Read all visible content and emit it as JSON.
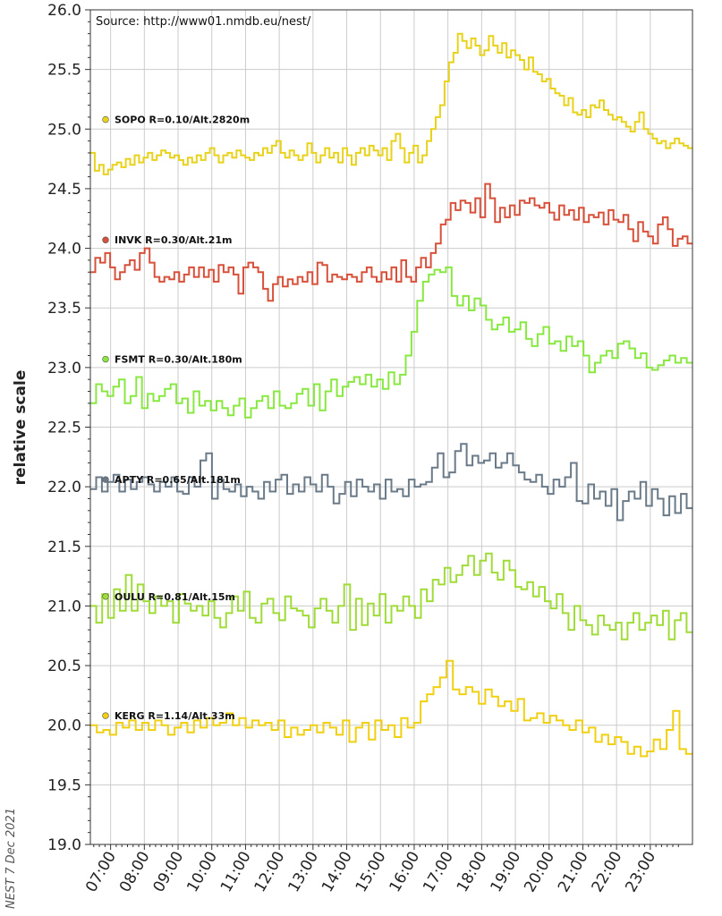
{
  "chart_data": {
    "type": "line",
    "source_note": "Source: http://www01.nmdb.eu/nest/",
    "credit": "NEST  7 Dec 2021",
    "ylabel": "relative scale",
    "ylim": [
      19.0,
      26.0
    ],
    "yticks": [
      "26.0",
      "25.5",
      "25.0",
      "24.5",
      "24.0",
      "23.5",
      "23.0",
      "22.5",
      "22.0",
      "21.5",
      "21.0",
      "20.5",
      "20.0",
      "19.5",
      "19.0"
    ],
    "xlim": [
      6.4,
      24.25
    ],
    "xticks": [
      "07:00",
      "08:00",
      "09:00",
      "10:00",
      "11:00",
      "12:00",
      "13:00",
      "14:00",
      "15:00",
      "16:00",
      "17:00",
      "18:00",
      "19:00",
      "20:00",
      "21:00",
      "22:00",
      "23:00"
    ],
    "grid": true,
    "step": 0.1667,
    "series": [
      {
        "name": "SOPO R=0.10/Alt.2820m",
        "color": "#e8d21a",
        "values": [
          24.8,
          24.65,
          24.7,
          24.62,
          24.66,
          24.7,
          24.72,
          24.68,
          24.75,
          24.7,
          24.78,
          24.72,
          24.76,
          24.8,
          24.74,
          24.78,
          24.82,
          24.8,
          24.76,
          24.78,
          24.74,
          24.7,
          24.76,
          24.72,
          24.78,
          24.74,
          24.8,
          24.84,
          24.78,
          24.72,
          24.78,
          24.8,
          24.76,
          24.82,
          24.78,
          24.76,
          24.74,
          24.8,
          24.78,
          24.84,
          24.8,
          24.86,
          24.9,
          24.8,
          24.76,
          24.82,
          24.78,
          24.74,
          24.78,
          24.88,
          24.8,
          24.72,
          24.78,
          24.84,
          24.76,
          24.8,
          24.72,
          24.84,
          24.78,
          24.7,
          24.8,
          24.84,
          24.78,
          24.86,
          24.82,
          24.78,
          24.84,
          24.74,
          24.9,
          24.96,
          24.84,
          24.72,
          24.8,
          24.86,
          24.72,
          24.78,
          24.9,
          25.0,
          25.1,
          25.2,
          25.4,
          25.56,
          25.64,
          25.8,
          25.74,
          25.68,
          25.76,
          25.7,
          25.62,
          25.66,
          25.78,
          25.7,
          25.64,
          25.72,
          25.6,
          25.66,
          25.62,
          25.58,
          25.5,
          25.6,
          25.48,
          25.46,
          25.4,
          25.42,
          25.34,
          25.3,
          25.28,
          25.2,
          25.26,
          25.14,
          25.12,
          25.16,
          25.1,
          25.2,
          25.18,
          25.24,
          25.16,
          25.12,
          25.08,
          25.1,
          25.06,
          25.02,
          24.98,
          25.06,
          25.14,
          25.0,
          24.96,
          24.92,
          24.88,
          24.9,
          24.84,
          24.88,
          24.92,
          24.88,
          24.86,
          24.84
        ],
        "label_y": 25.08
      },
      {
        "name": "INVK R=0.30/Alt.21m",
        "color": "#d8503a",
        "values": [
          23.8,
          23.92,
          23.88,
          23.96,
          23.84,
          23.74,
          23.8,
          23.86,
          23.9,
          23.82,
          23.96,
          24.0,
          23.88,
          23.76,
          23.72,
          23.76,
          23.74,
          23.8,
          23.72,
          23.78,
          23.84,
          23.76,
          23.84,
          23.76,
          23.82,
          23.72,
          23.86,
          23.8,
          23.84,
          23.78,
          23.62,
          23.84,
          23.88,
          23.84,
          23.8,
          23.66,
          23.56,
          23.7,
          23.76,
          23.68,
          23.74,
          23.7,
          23.76,
          23.72,
          23.8,
          23.7,
          23.88,
          23.86,
          23.72,
          23.78,
          23.76,
          23.74,
          23.78,
          23.76,
          23.72,
          23.8,
          23.84,
          23.76,
          23.72,
          23.8,
          23.74,
          23.84,
          23.72,
          23.9,
          23.76,
          23.72,
          23.84,
          23.92,
          23.84,
          23.96,
          24.04,
          24.2,
          24.24,
          24.38,
          24.32,
          24.4,
          24.38,
          24.3,
          24.42,
          24.26,
          24.54,
          24.42,
          24.22,
          24.34,
          24.26,
          24.36,
          24.28,
          24.4,
          24.38,
          24.42,
          24.36,
          24.34,
          24.38,
          24.3,
          24.24,
          24.36,
          24.28,
          24.32,
          24.24,
          24.34,
          24.22,
          24.28,
          24.26,
          24.3,
          24.2,
          24.32,
          24.24,
          24.22,
          24.28,
          24.16,
          24.06,
          24.22,
          24.14,
          24.1,
          24.04,
          24.2,
          24.26,
          24.16,
          24.02,
          24.08,
          24.1,
          24.04
        ],
        "label_y": 24.07
      },
      {
        "name": "FSMT R=0.30/Alt.180m",
        "color": "#88e840",
        "values": [
          22.7,
          22.86,
          22.8,
          22.76,
          22.84,
          22.9,
          22.7,
          22.76,
          22.92,
          22.66,
          22.78,
          22.72,
          22.76,
          22.82,
          22.86,
          22.7,
          22.74,
          22.62,
          22.8,
          22.68,
          22.72,
          22.64,
          22.72,
          22.66,
          22.6,
          22.68,
          22.74,
          22.58,
          22.66,
          22.72,
          22.76,
          22.66,
          22.8,
          22.68,
          22.66,
          22.7,
          22.78,
          22.82,
          22.68,
          22.86,
          22.64,
          22.8,
          22.9,
          22.76,
          22.84,
          22.88,
          22.92,
          22.86,
          22.94,
          22.84,
          22.9,
          22.82,
          22.96,
          22.86,
          22.94,
          23.1,
          23.3,
          23.56,
          23.72,
          23.78,
          23.82,
          23.8,
          23.84,
          23.6,
          23.52,
          23.6,
          23.48,
          23.58,
          23.52,
          23.4,
          23.32,
          23.36,
          23.42,
          23.3,
          23.32,
          23.38,
          23.24,
          23.18,
          23.28,
          23.34,
          23.2,
          23.22,
          23.14,
          23.26,
          23.18,
          23.22,
          23.1,
          22.96,
          23.04,
          23.1,
          23.14,
          23.08,
          23.2,
          23.22,
          23.16,
          23.08,
          23.12,
          23.0,
          22.98,
          23.02,
          23.06,
          23.1,
          23.04,
          23.08,
          23.04
        ],
        "label_y": 23.07
      },
      {
        "name": "APTY R=0.65/Alt.181m",
        "color": "#6a7a88",
        "values": [
          21.98,
          22.08,
          21.96,
          22.04,
          22.1,
          21.96,
          22.06,
          21.98,
          22.04,
          22.08,
          22.02,
          21.96,
          22.04,
          22.0,
          22.08,
          21.96,
          21.94,
          22.08,
          22.0,
          22.22,
          22.28,
          21.9,
          22.06,
          21.98,
          21.96,
          22.02,
          21.92,
          22.0,
          21.96,
          21.9,
          22.04,
          21.96,
          22.06,
          22.1,
          21.94,
          22.02,
          21.96,
          22.08,
          22.02,
          21.96,
          22.1,
          22.0,
          21.86,
          21.94,
          22.04,
          21.92,
          22.06,
          22.0,
          21.96,
          22.02,
          21.9,
          22.06,
          21.96,
          21.98,
          21.92,
          22.06,
          22.0,
          22.02,
          22.04,
          22.16,
          22.28,
          22.08,
          22.12,
          22.3,
          22.36,
          22.18,
          22.26,
          22.2,
          22.22,
          22.28,
          22.16,
          22.2,
          22.28,
          22.18,
          22.12,
          22.06,
          22.04,
          22.1,
          22.0,
          21.94,
          22.06,
          22.0,
          22.08,
          22.2,
          21.88,
          21.86,
          22.02,
          21.9,
          21.96,
          21.84,
          21.98,
          21.72,
          21.88,
          21.96,
          21.9,
          22.04,
          21.84,
          21.98,
          21.9,
          21.76,
          21.92,
          21.78,
          21.94,
          21.82
        ],
        "label_y": 22.06
      },
      {
        "name": "OULU R=0.81/Alt.15m",
        "color": "#a0dc38",
        "values": [
          21.0,
          20.86,
          21.1,
          20.9,
          21.14,
          20.96,
          21.26,
          20.96,
          21.18,
          21.04,
          20.94,
          21.08,
          21.0,
          21.04,
          20.86,
          21.1,
          21.02,
          20.96,
          21.0,
          20.92,
          21.04,
          20.9,
          20.82,
          20.94,
          21.08,
          20.96,
          21.12,
          20.9,
          20.86,
          21.02,
          21.06,
          20.94,
          20.88,
          21.08,
          20.98,
          20.96,
          20.92,
          20.82,
          20.98,
          21.06,
          20.96,
          20.86,
          21.0,
          21.18,
          20.8,
          21.06,
          20.84,
          21.02,
          20.92,
          21.1,
          20.86,
          21.0,
          20.96,
          21.08,
          21.0,
          20.9,
          21.14,
          21.04,
          21.22,
          21.18,
          21.32,
          21.2,
          21.26,
          21.34,
          21.42,
          21.26,
          21.38,
          21.44,
          21.28,
          21.22,
          21.38,
          21.3,
          21.16,
          21.14,
          21.2,
          21.08,
          21.16,
          21.04,
          20.98,
          21.1,
          20.94,
          20.8,
          21.0,
          20.88,
          20.84,
          20.76,
          20.92,
          20.84,
          20.8,
          20.86,
          20.72,
          20.86,
          20.94,
          20.8,
          20.86,
          20.92,
          20.84,
          20.96,
          20.72,
          20.88,
          20.94,
          20.78
        ],
        "label_y": 21.08
      },
      {
        "name": "KERG R=1.14/Alt.33m",
        "color": "#f0d010",
        "values": [
          20.0,
          19.94,
          19.96,
          19.92,
          20.02,
          19.98,
          20.04,
          19.96,
          20.02,
          19.96,
          20.04,
          20.0,
          19.92,
          19.98,
          20.02,
          19.94,
          20.04,
          19.98,
          20.06,
          20.0,
          20.02,
          20.1,
          20.0,
          20.06,
          19.98,
          20.04,
          20.0,
          20.02,
          19.96,
          20.04,
          19.9,
          19.98,
          19.92,
          19.96,
          20.0,
          19.94,
          20.02,
          19.98,
          19.92,
          20.04,
          19.86,
          19.98,
          20.02,
          19.88,
          20.04,
          19.96,
          20.0,
          19.9,
          20.06,
          19.98,
          20.02,
          20.2,
          20.26,
          20.32,
          20.4,
          20.54,
          20.3,
          20.26,
          20.32,
          20.28,
          20.18,
          20.3,
          20.24,
          20.16,
          20.2,
          20.12,
          20.22,
          20.04,
          20.06,
          20.1,
          20.02,
          20.08,
          20.04,
          20.0,
          19.96,
          20.04,
          19.94,
          19.98,
          19.86,
          19.92,
          19.84,
          19.9,
          19.86,
          19.76,
          19.82,
          19.74,
          19.78,
          19.88,
          19.8,
          19.96,
          20.12,
          19.8,
          19.76
        ],
        "label_y": 20.08
      }
    ]
  }
}
